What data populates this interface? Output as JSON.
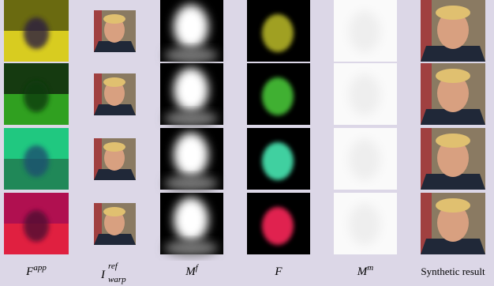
{
  "figure": {
    "labels": [
      {
        "base": "F",
        "sup": "app"
      },
      {
        "base": "I",
        "sup": "ref",
        "sub": "warp"
      },
      {
        "base": "M",
        "sup": "f"
      },
      {
        "base": "F"
      },
      {
        "base": "M",
        "sup": "m"
      },
      {
        "base": "Synthetic result"
      }
    ]
  }
}
